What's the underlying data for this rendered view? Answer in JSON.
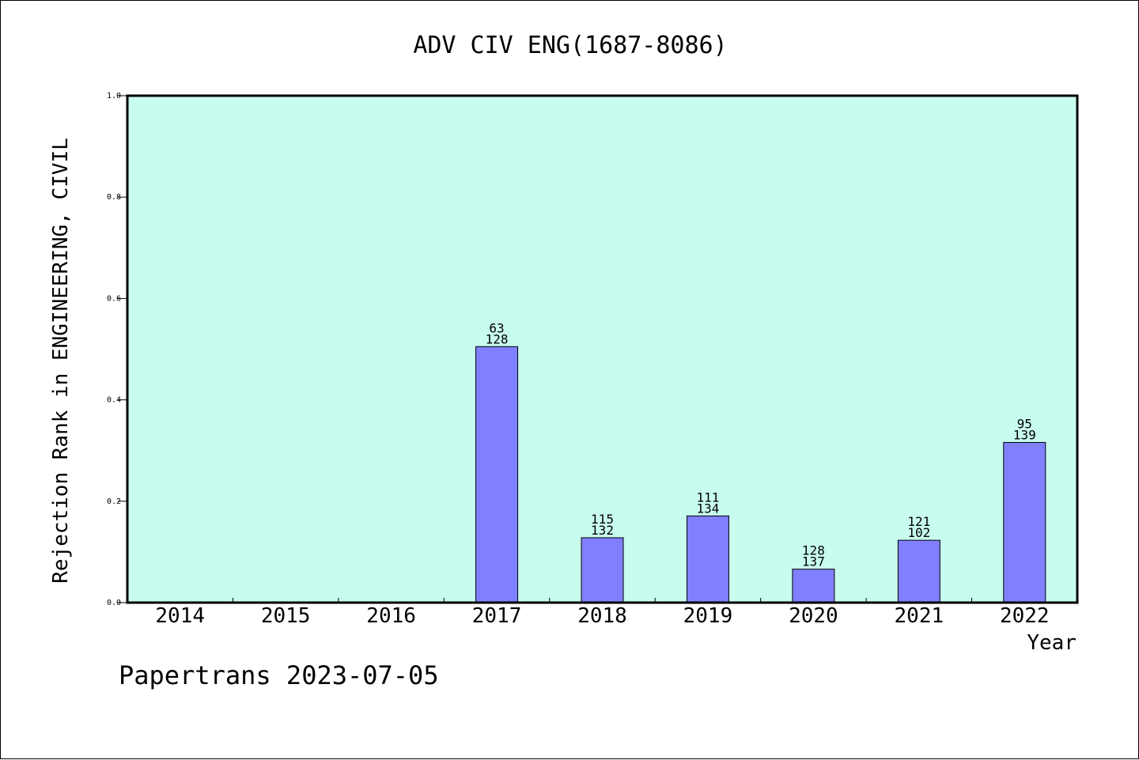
{
  "chart_data": {
    "type": "bar",
    "title": "ADV CIV ENG(1687-8086)",
    "xlabel": "Year",
    "ylabel": "Rejection Rank in ENGINEERING, CIVIL",
    "categories": [
      "2014",
      "2015",
      "2016",
      "2017",
      "2018",
      "2019",
      "2020",
      "2021",
      "2022"
    ],
    "values": [
      null,
      null,
      null,
      0.505,
      0.128,
      0.171,
      0.066,
      0.123,
      0.316
    ],
    "labels_top": [
      null,
      null,
      null,
      "63",
      "115",
      "111",
      "128",
      "121",
      "95"
    ],
    "labels_bottom": [
      null,
      null,
      null,
      "128",
      "132",
      "134",
      "137",
      "102",
      "139"
    ],
    "ylim": [
      0,
      1.0
    ],
    "yticks": [
      "0.0",
      "0.2",
      "0.4",
      "0.6",
      "0.8",
      "1.0"
    ],
    "grid": false,
    "legend": "none",
    "colors": {
      "plot_background": "#c8fcee",
      "bar": "#8080ff",
      "axis": "#000000"
    }
  },
  "footer": {
    "credit": "Papertrans 2023-07-05"
  }
}
